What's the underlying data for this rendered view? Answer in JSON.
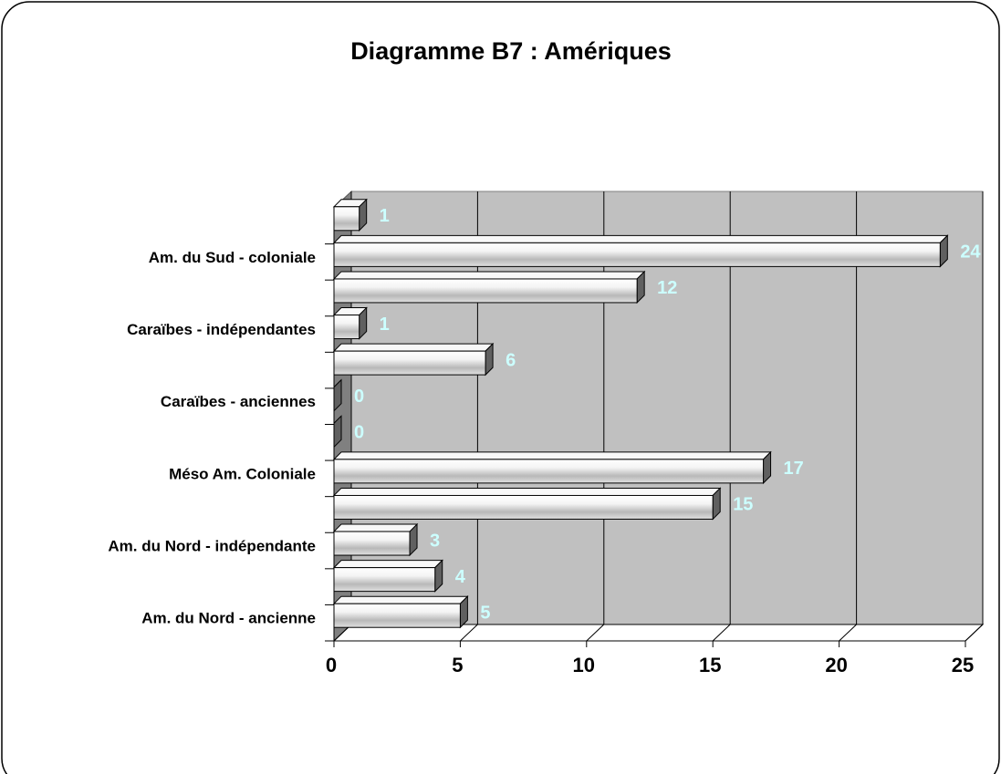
{
  "chart_data": {
    "type": "bar",
    "orientation": "horizontal",
    "title": "Diagramme B7 : Amériques",
    "categories": [
      "Am. du Nord - ancienne",
      null,
      "Am. du Nord - indépendante",
      null,
      "Méso Am. Coloniale",
      null,
      "Caraïbes - anciennes",
      null,
      "Caraïbes - indépendantes",
      null,
      "Am. du Sud - coloniale",
      null
    ],
    "values": [
      5,
      4,
      3,
      15,
      17,
      0,
      0,
      6,
      1,
      12,
      24,
      1
    ],
    "color": "#e8e8e8",
    "label_color": "#ccffff",
    "wall_color": "#c0c0c0",
    "xlim": [
      0,
      25
    ],
    "xticks": [
      0,
      5,
      10,
      15,
      20,
      25
    ],
    "grid": true
  }
}
